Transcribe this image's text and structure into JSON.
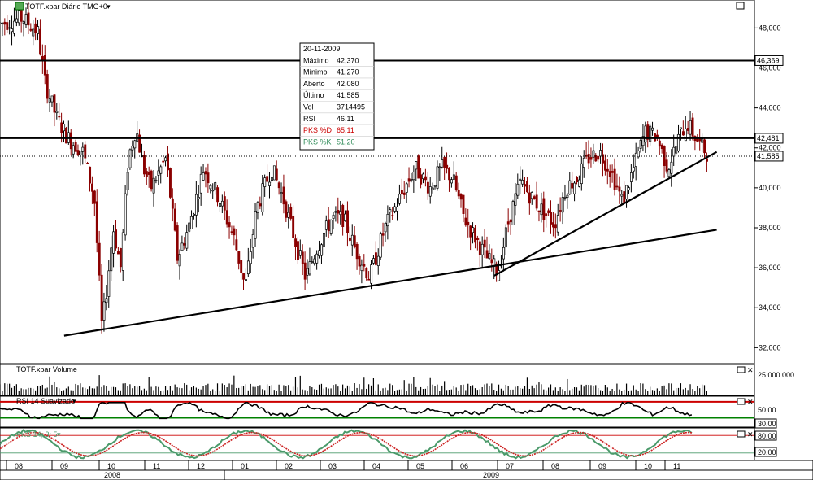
{
  "chart_data": {
    "type": "candlestick",
    "symbol_title": "TOTF.xpar Diário TMG+0",
    "price_axis": {
      "ylim": [
        31.2,
        49.4
      ],
      "ticks": [
        "48,000",
        "46,000",
        "44,000",
        "42,000",
        "40,000",
        "38,000",
        "36,000",
        "34,000",
        "32,000"
      ],
      "tick_values": [
        48,
        46,
        44,
        42,
        40,
        38,
        36,
        34,
        32
      ]
    },
    "price_markers": [
      {
        "label": "46,369",
        "value": 46.369,
        "kind": "hline-thick"
      },
      {
        "label": "42,481",
        "value": 42.481,
        "kind": "hline-thick"
      },
      {
        "label": "41,585",
        "value": 41.585,
        "kind": "dotted-last"
      }
    ],
    "trendlines": [
      {
        "from": {
          "x": 0.085,
          "y": 32.6
        },
        "to": {
          "x": 0.95,
          "y": 37.9
        }
      },
      {
        "from": {
          "x": 0.655,
          "y": 35.6
        },
        "to": {
          "x": 0.95,
          "y": 41.8
        }
      }
    ],
    "info_box": [
      {
        "label": "",
        "value": "20-11-2009",
        "color": "#000000"
      },
      {
        "label": "Máximo",
        "value": "42,370",
        "color": "#000000"
      },
      {
        "label": "Mínimo",
        "value": "41,270",
        "color": "#000000"
      },
      {
        "label": "Aberto",
        "value": "42,080",
        "color": "#000000"
      },
      {
        "label": "Último",
        "value": "41,585",
        "color": "#000000"
      },
      {
        "label": "Vol",
        "value": "3714495",
        "color": "#000000"
      },
      {
        "label": "RSI",
        "value": "46,11",
        "color": "#000000"
      },
      {
        "label": "PKS %D",
        "value": "65,11",
        "color": "#cc0000"
      },
      {
        "label": "PKS %K",
        "value": "51,20",
        "color": "#2e8b57"
      }
    ],
    "price_path": [
      [
        0,
        48.2
      ],
      [
        0.03,
        48.5
      ],
      [
        0.05,
        47.8
      ],
      [
        0.06,
        45.2
      ],
      [
        0.075,
        43.5
      ],
      [
        0.09,
        42.5
      ],
      [
        0.11,
        41.8
      ],
      [
        0.125,
        39.5
      ],
      [
        0.135,
        33
      ],
      [
        0.14,
        34.5
      ],
      [
        0.15,
        38
      ],
      [
        0.16,
        36
      ],
      [
        0.17,
        41.5
      ],
      [
        0.18,
        43
      ],
      [
        0.19,
        41
      ],
      [
        0.2,
        40
      ],
      [
        0.22,
        41.5
      ],
      [
        0.235,
        36.5
      ],
      [
        0.25,
        38
      ],
      [
        0.27,
        41
      ],
      [
        0.29,
        39.5
      ],
      [
        0.31,
        37.5
      ],
      [
        0.325,
        35
      ],
      [
        0.34,
        39
      ],
      [
        0.36,
        41
      ],
      [
        0.375,
        39.5
      ],
      [
        0.39,
        37.5
      ],
      [
        0.405,
        35.5
      ],
      [
        0.42,
        37
      ],
      [
        0.44,
        38.5
      ],
      [
        0.455,
        38.5
      ],
      [
        0.47,
        37
      ],
      [
        0.49,
        35.5
      ],
      [
        0.51,
        38
      ],
      [
        0.53,
        39.5
      ],
      [
        0.55,
        41
      ],
      [
        0.57,
        40
      ],
      [
        0.585,
        41
      ],
      [
        0.6,
        40.5
      ],
      [
        0.615,
        38.5
      ],
      [
        0.63,
        37.5
      ],
      [
        0.645,
        36.5
      ],
      [
        0.66,
        35.8
      ],
      [
        0.675,
        38.5
      ],
      [
        0.69,
        40.3
      ],
      [
        0.705,
        39.5
      ],
      [
        0.72,
        38.8
      ],
      [
        0.735,
        38.2
      ],
      [
        0.75,
        40
      ],
      [
        0.765,
        40.5
      ],
      [
        0.78,
        41.5
      ],
      [
        0.795,
        41.8
      ],
      [
        0.81,
        40.8
      ],
      [
        0.825,
        39.3
      ],
      [
        0.84,
        41
      ],
      [
        0.855,
        42.8
      ],
      [
        0.87,
        42.6
      ],
      [
        0.885,
        41
      ],
      [
        0.9,
        42.5
      ],
      [
        0.91,
        43.3
      ],
      [
        0.925,
        42.3
      ],
      [
        0.94,
        41.6
      ]
    ],
    "volume_pane": {
      "title": "TOTF.xpar Volume",
      "tick": "25.000.000"
    },
    "rsi_pane": {
      "title": "RSI 14 Suavizado",
      "ticks": [
        "50,00",
        "30,00"
      ],
      "levels": [
        70,
        30
      ],
      "values": [
        38,
        40,
        35,
        42,
        36,
        45,
        40,
        38,
        44,
        50,
        46,
        42,
        48,
        44,
        40,
        46,
        50,
        47,
        43,
        45,
        48,
        44,
        42,
        46,
        50,
        47,
        44,
        41,
        45,
        48,
        52,
        56,
        58,
        55,
        52,
        50,
        48,
        46,
        44,
        42,
        45,
        48,
        52,
        56,
        58,
        56,
        54,
        52,
        50,
        46
      ]
    },
    "pks_pane": {
      "title": "PKS 14; 3; 5",
      "ticks": [
        "80,00",
        "20,00"
      ],
      "levels": [
        80,
        20
      ]
    },
    "time_axis": {
      "months": [
        "08",
        "09",
        "10",
        "11",
        "12",
        "01",
        "02",
        "03",
        "04",
        "05",
        "06",
        "07",
        "08",
        "09",
        "10",
        "11"
      ],
      "years": [
        "2008",
        "2009"
      ]
    },
    "colors": {
      "up": "#000000",
      "down": "#8b0000",
      "rsi_line": "#000000",
      "rsi_upper": "#cc0000",
      "rsi_lower": "#008000",
      "pks_d": "#cc2222",
      "pks_k": "#4a9a6a",
      "wave": "#cc0000"
    }
  }
}
